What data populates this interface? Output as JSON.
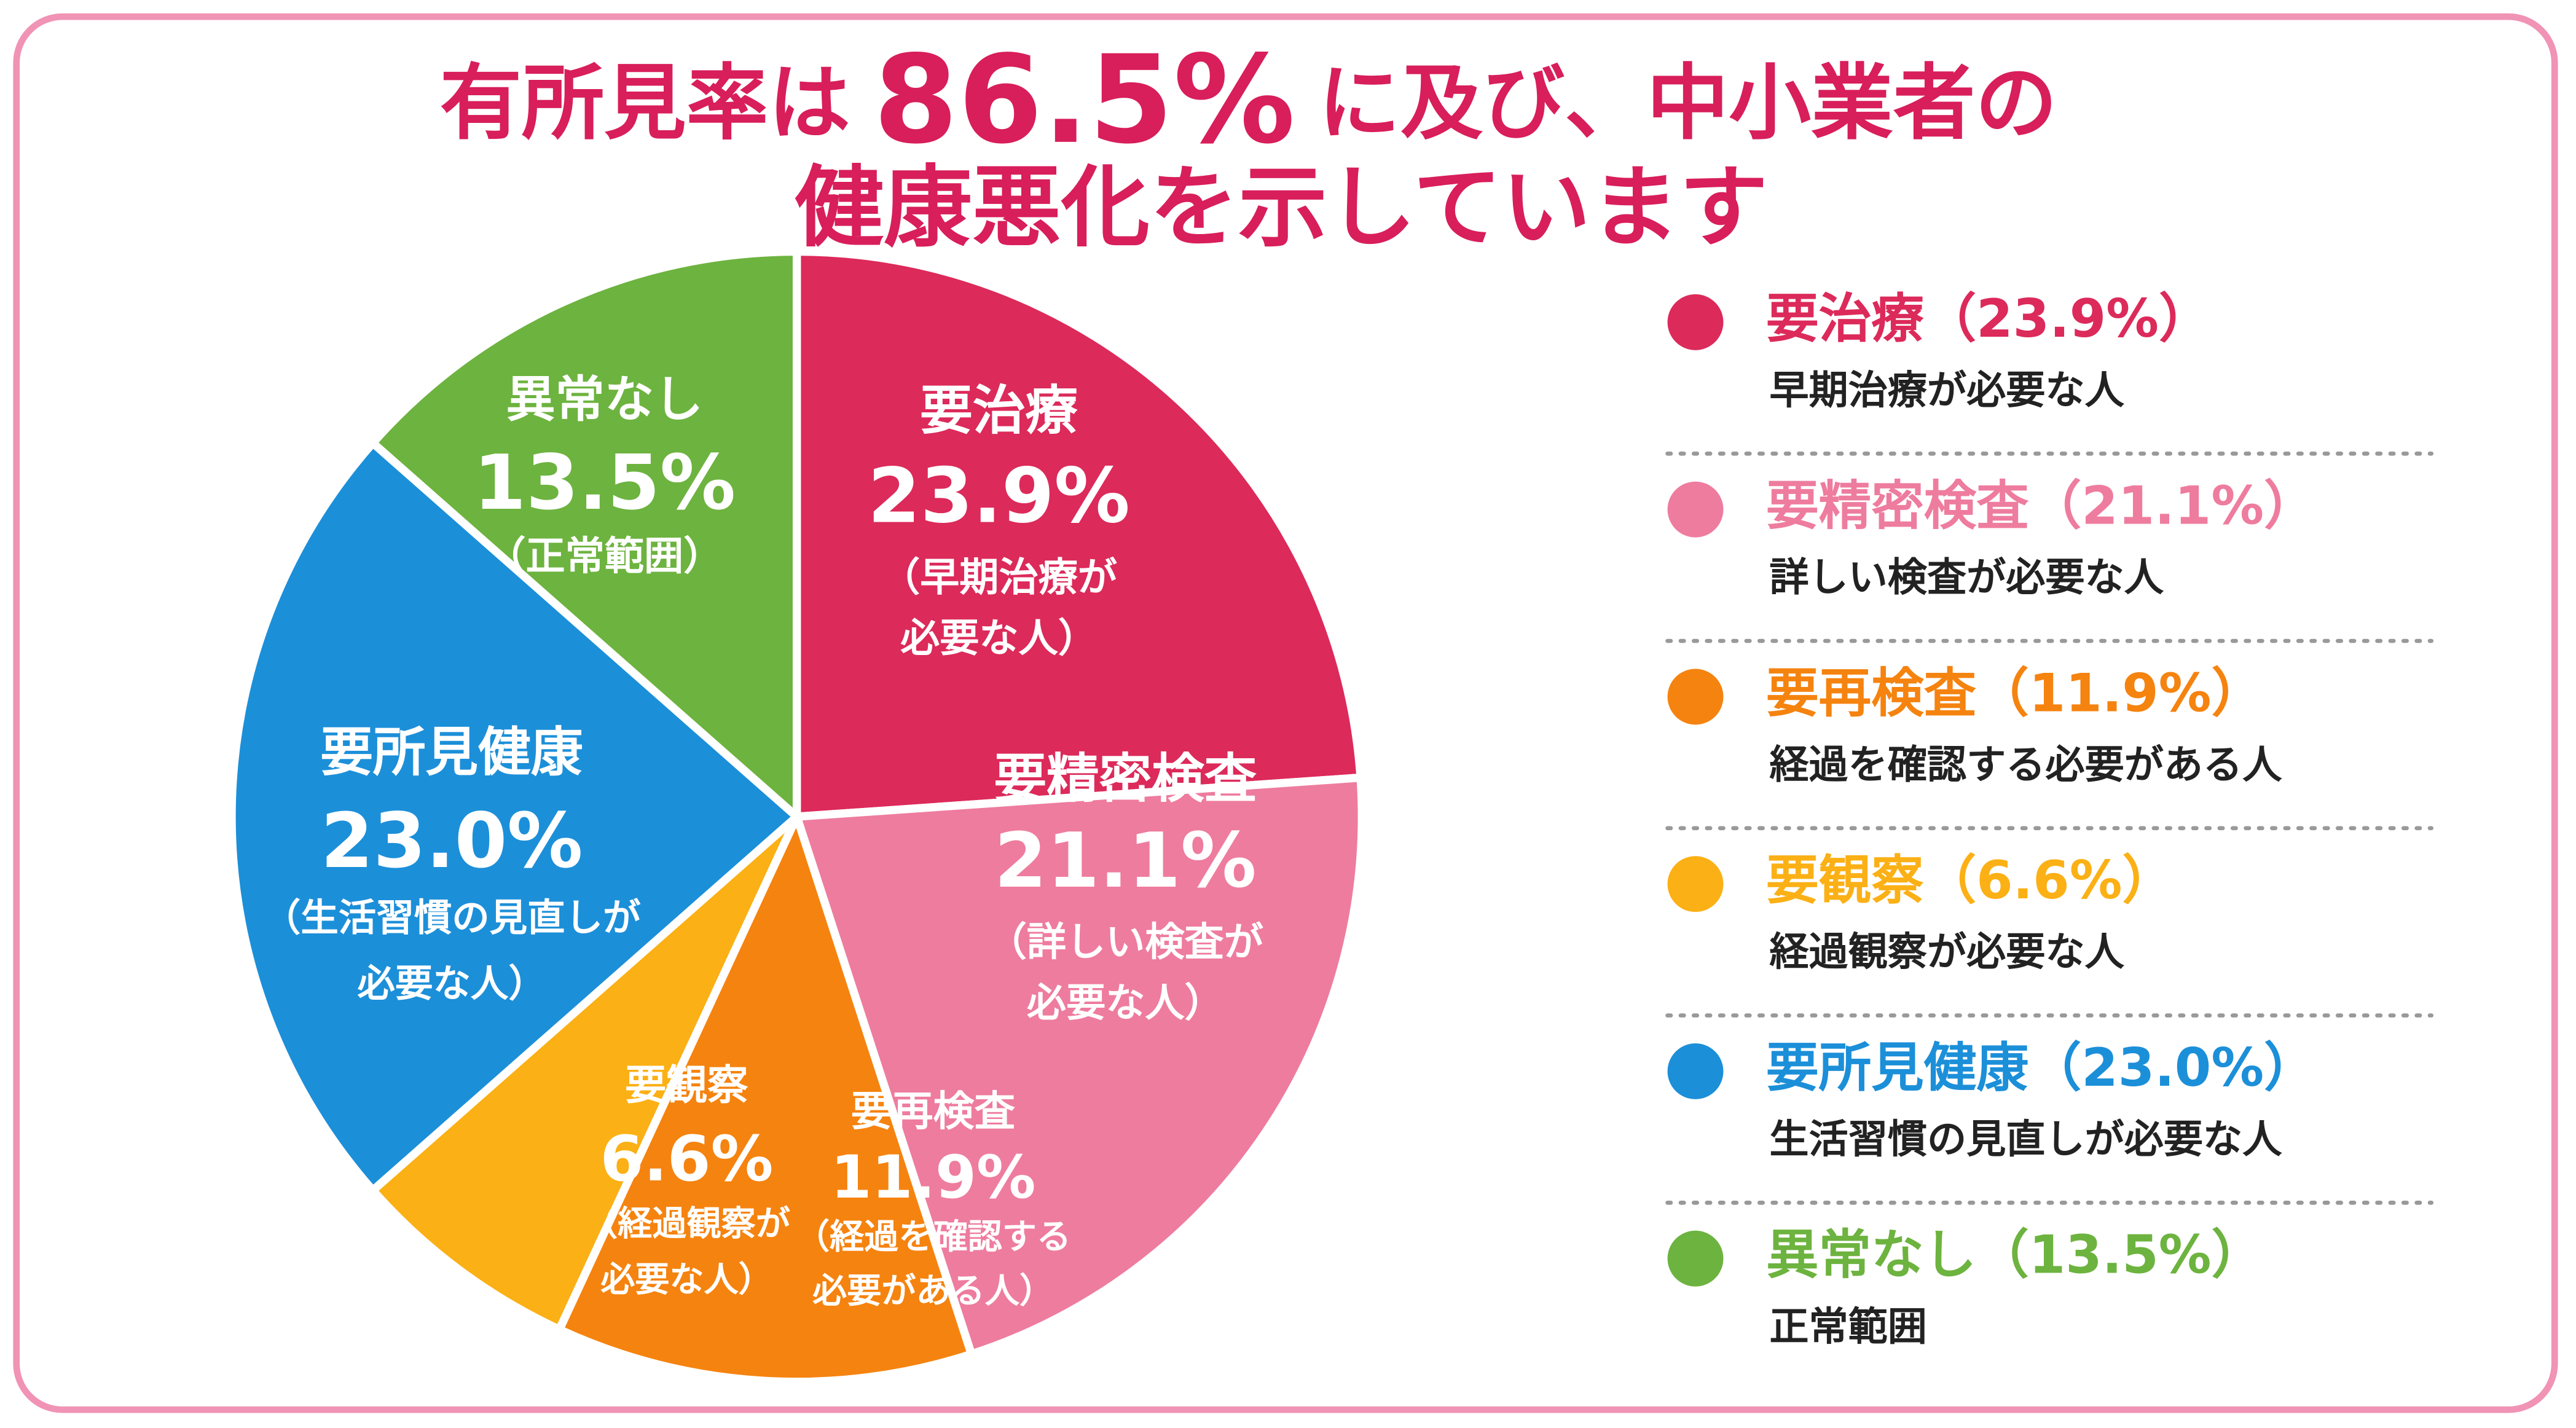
{
  "chart_data": {
    "type": "pie",
    "title": {
      "line1_before": "有所見率は",
      "highlight": "86.5%",
      "line1_after": "に及び、中小業者の",
      "line2": "健康悪化を示しています"
    },
    "categories": [
      "要治療",
      "要精密検査",
      "要再検査",
      "要観察",
      "要所見健康",
      "異常なし"
    ],
    "values": [
      23.9,
      21.1,
      11.9,
      6.6,
      23.0,
      13.5
    ],
    "value_labels": [
      "23.9%",
      "21.1%",
      "11.9%",
      "6.6%",
      "23.0%",
      "13.5%"
    ],
    "colors": [
      "#dc2a5a",
      "#ee7c9e",
      "#f5830f",
      "#fbb015",
      "#1c8fd9",
      "#6db33f"
    ],
    "slice_notes": [
      [
        "（早期治療が",
        "必要な人）"
      ],
      [
        "（詳しい検査が",
        "必要な人）"
      ],
      [
        "（経過を確認する",
        "必要がある人）"
      ],
      [
        "（経過観察が",
        "必要な人）"
      ],
      [
        "（生活習慣の見直しが",
        "必要な人）"
      ],
      [
        "（正常範囲）"
      ]
    ],
    "legend_labels": [
      "要治療（23.9%）",
      "要精密検査（21.1%）",
      "要再検査（11.9%）",
      "要観察（6.6%）",
      "要所見健康（23.0%）",
      "異常なし（13.5%）"
    ],
    "legend_descriptions": [
      "早期治療が必要な人",
      "詳しい検査が必要な人",
      "経過を確認する必要がある人",
      "経過観察が必要な人",
      "生活習慣の見直しが必要な人",
      "正常範囲"
    ]
  }
}
